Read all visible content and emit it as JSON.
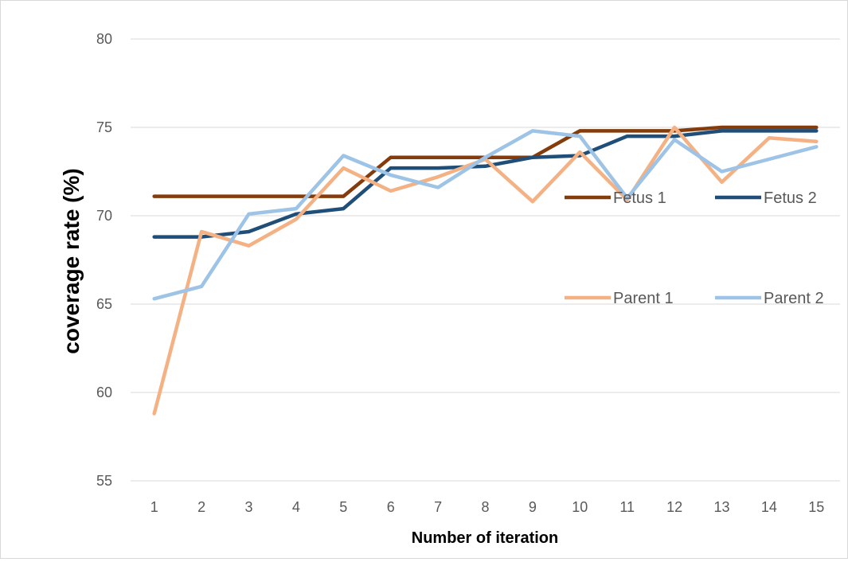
{
  "chart_data": {
    "type": "line",
    "title": "",
    "xlabel": "Number of iteration",
    "ylabel": "coverage  rate (%)",
    "x": [
      1,
      2,
      3,
      4,
      5,
      6,
      7,
      8,
      9,
      10,
      11,
      12,
      13,
      14,
      15
    ],
    "x_tick_labels": [
      "1",
      "2",
      "3",
      "4",
      "5",
      "6",
      "7",
      "8",
      "9",
      "10",
      "11",
      "12",
      "13",
      "14",
      "15"
    ],
    "ylim": [
      55,
      80
    ],
    "y_ticks": [
      55,
      60,
      65,
      70,
      75,
      80
    ],
    "y_tick_labels": [
      "55",
      "60",
      "65",
      "70",
      "75",
      "80"
    ],
    "grid": "horizontal",
    "legend_placement": "right, inside plot",
    "series": [
      {
        "name": "Fetus 1",
        "color": "#843c0c",
        "values": [
          71.1,
          71.1,
          71.1,
          71.1,
          71.1,
          73.3,
          73.3,
          73.3,
          73.3,
          74.8,
          74.8,
          74.8,
          75.0,
          75.0,
          75.0
        ]
      },
      {
        "name": "Fetus 2",
        "color": "#1f4e79",
        "values": [
          68.8,
          68.8,
          69.1,
          70.1,
          70.4,
          72.7,
          72.7,
          72.8,
          73.3,
          73.4,
          74.5,
          74.5,
          74.8,
          74.8,
          74.8
        ]
      },
      {
        "name": "Parent 1",
        "color": "#f4b183",
        "values": [
          58.8,
          69.1,
          68.3,
          69.8,
          72.7,
          71.4,
          72.2,
          73.2,
          70.8,
          73.6,
          70.9,
          75.0,
          71.9,
          74.4,
          74.2
        ]
      },
      {
        "name": "Parent 2",
        "color": "#9dc3e6",
        "values": [
          65.3,
          66.0,
          70.1,
          70.4,
          73.4,
          72.3,
          71.6,
          73.3,
          74.8,
          74.5,
          71.0,
          74.3,
          72.5,
          73.2,
          73.9
        ]
      }
    ]
  }
}
